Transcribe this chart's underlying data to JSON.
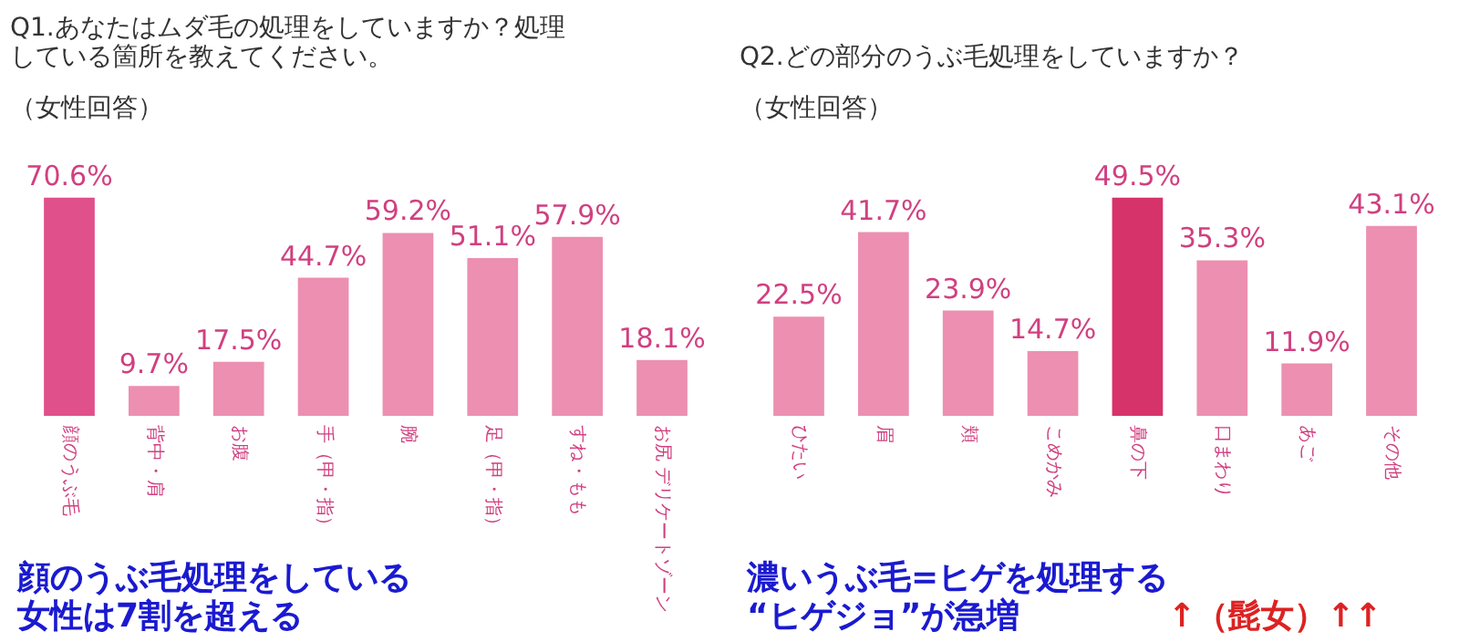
{
  "chart_data": [
    {
      "type": "bar",
      "title": "Q1.あなたはムダ毛の処理をしていますか？処理している箇所を教えてください。",
      "subtitle": "（女性回答）",
      "categories": [
        "顔のうぶ毛",
        "背中・肩",
        "お腹",
        "手（甲・指）",
        "腕",
        "足（甲・指）",
        "すね・もも",
        "お尻 デリケートゾーン"
      ],
      "values": [
        70.6,
        9.7,
        17.5,
        44.7,
        59.2,
        51.1,
        57.9,
        18.1
      ],
      "colors": [
        "#e0508a",
        "#ec8fb0",
        "#ec8fb0",
        "#ec8fb0",
        "#ec8fb0",
        "#ec8fb0",
        "#ec8fb0",
        "#ec8fb0"
      ],
      "value_labels": [
        "70.6%",
        "9.7%",
        "17.5%",
        "44.7%",
        "59.2%",
        "51.1%",
        "57.9%",
        "18.1%"
      ],
      "annotations": [
        "顔のうぶ毛処理をしている女性は7割を超える"
      ]
    },
    {
      "type": "bar",
      "title": "Q2.どの部分のうぶ毛処理をしていますか？",
      "subtitle": "（女性回答）",
      "categories": [
        "ひたい",
        "眉",
        "頬",
        "こめかみ",
        "鼻の下",
        "口まわり",
        "あご",
        "その他"
      ],
      "values": [
        22.5,
        41.7,
        23.9,
        14.7,
        49.5,
        35.3,
        11.9,
        43.1
      ],
      "colors": [
        "#ec8fb0",
        "#ec8fb0",
        "#ec8fb0",
        "#ec8fb0",
        "#d6336b",
        "#ec8fb0",
        "#ec8fb0",
        "#ec8fb0"
      ],
      "value_labels": [
        "22.5%",
        "41.7%",
        "23.9%",
        "14.7%",
        "49.5%",
        "35.3%",
        "11.9%",
        "43.1%"
      ],
      "annotations": [
        "濃いうぶ毛=ヒゲを処理する“ヒゲジョ”が急増",
        "↑（髭女）↑↑"
      ]
    }
  ]
}
